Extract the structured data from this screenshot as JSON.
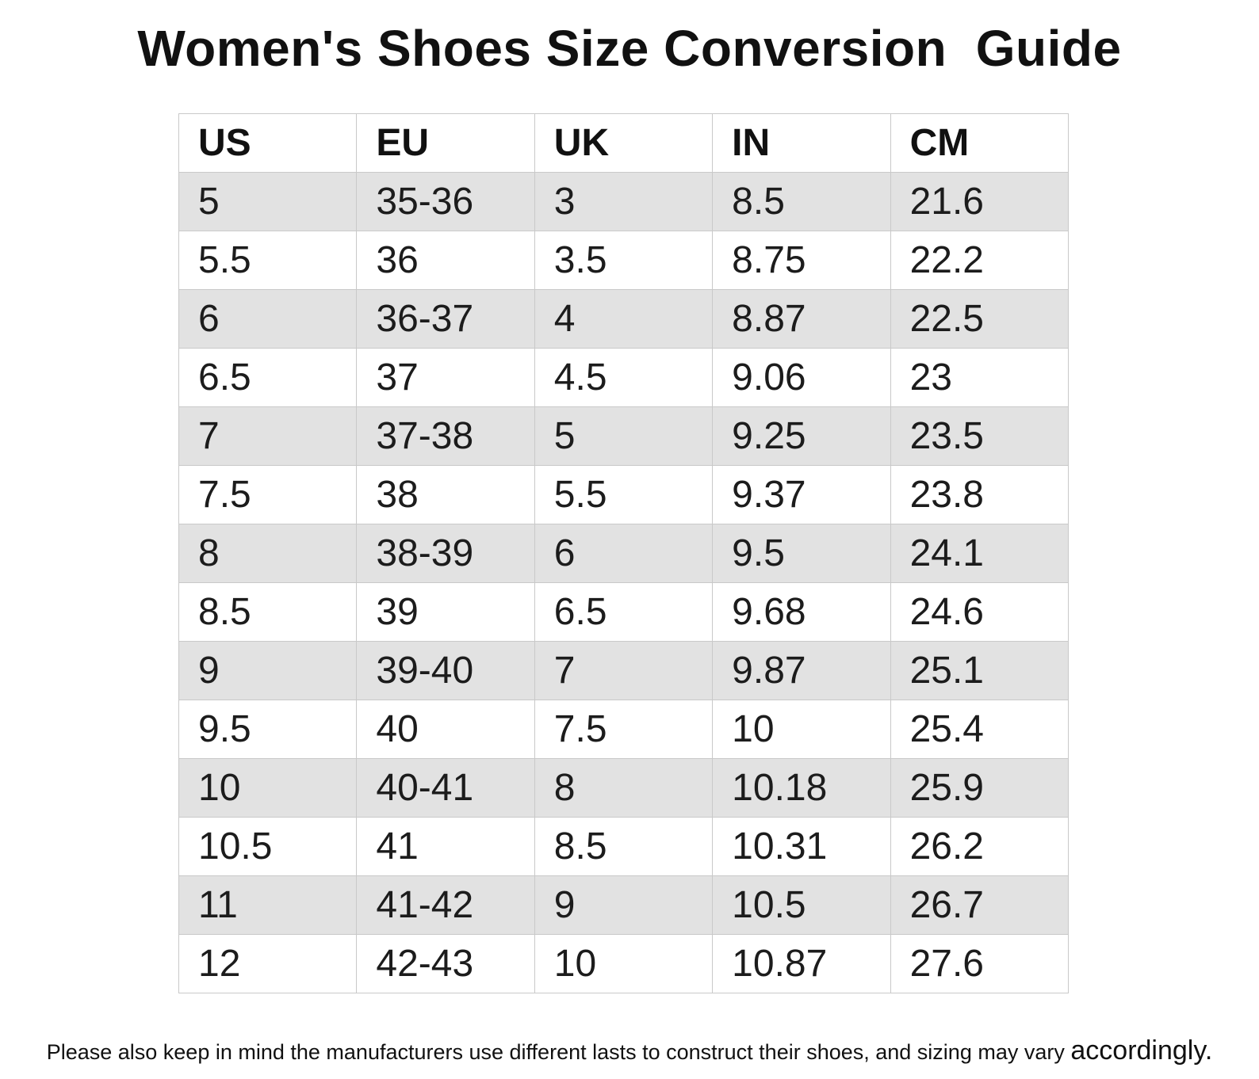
{
  "title": "Women's Shoes Size Conversion  Guide",
  "chart_data": {
    "type": "table",
    "title": "Women's Shoes Size Conversion Guide",
    "columns": [
      "US",
      "EU",
      "UK",
      "IN",
      "CM"
    ],
    "rows": [
      [
        "5",
        "35-36",
        "3",
        "8.5",
        "21.6"
      ],
      [
        "5.5",
        "36",
        "3.5",
        "8.75",
        "22.2"
      ],
      [
        "6",
        "36-37",
        "4",
        "8.87",
        "22.5"
      ],
      [
        "6.5",
        "37",
        "4.5",
        "9.06",
        "23"
      ],
      [
        "7",
        "37-38",
        "5",
        "9.25",
        "23.5"
      ],
      [
        "7.5",
        "38",
        "5.5",
        "9.37",
        "23.8"
      ],
      [
        "8",
        "38-39",
        "6",
        "9.5",
        "24.1"
      ],
      [
        "8.5",
        "39",
        "6.5",
        "9.68",
        "24.6"
      ],
      [
        "9",
        "39-40",
        "7",
        "9.87",
        "25.1"
      ],
      [
        "9.5",
        "40",
        "7.5",
        "10",
        "25.4"
      ],
      [
        "10",
        "40-41",
        "8",
        "10.18",
        "25.9"
      ],
      [
        "10.5",
        "41",
        "8.5",
        "10.31",
        "26.2"
      ],
      [
        "11",
        "41-42",
        "9",
        "10.5",
        "26.7"
      ],
      [
        "12",
        "42-43",
        "10",
        "10.87",
        "27.6"
      ]
    ],
    "layout_hints": {
      "shaded_rows": "odd data rows (1st, 3rd, 5th, ...)",
      "header_background": "#ffffff"
    }
  },
  "footer": {
    "note": "Please also keep in mind the manufacturers use different lasts to construct their shoes, and sizing may vary",
    "note_emphasis": "accordingly."
  },
  "colors": {
    "background": "#ffffff",
    "text": "#1a1a1a",
    "row_shade": "#e2e2e2",
    "border": "#c9c9c9"
  }
}
